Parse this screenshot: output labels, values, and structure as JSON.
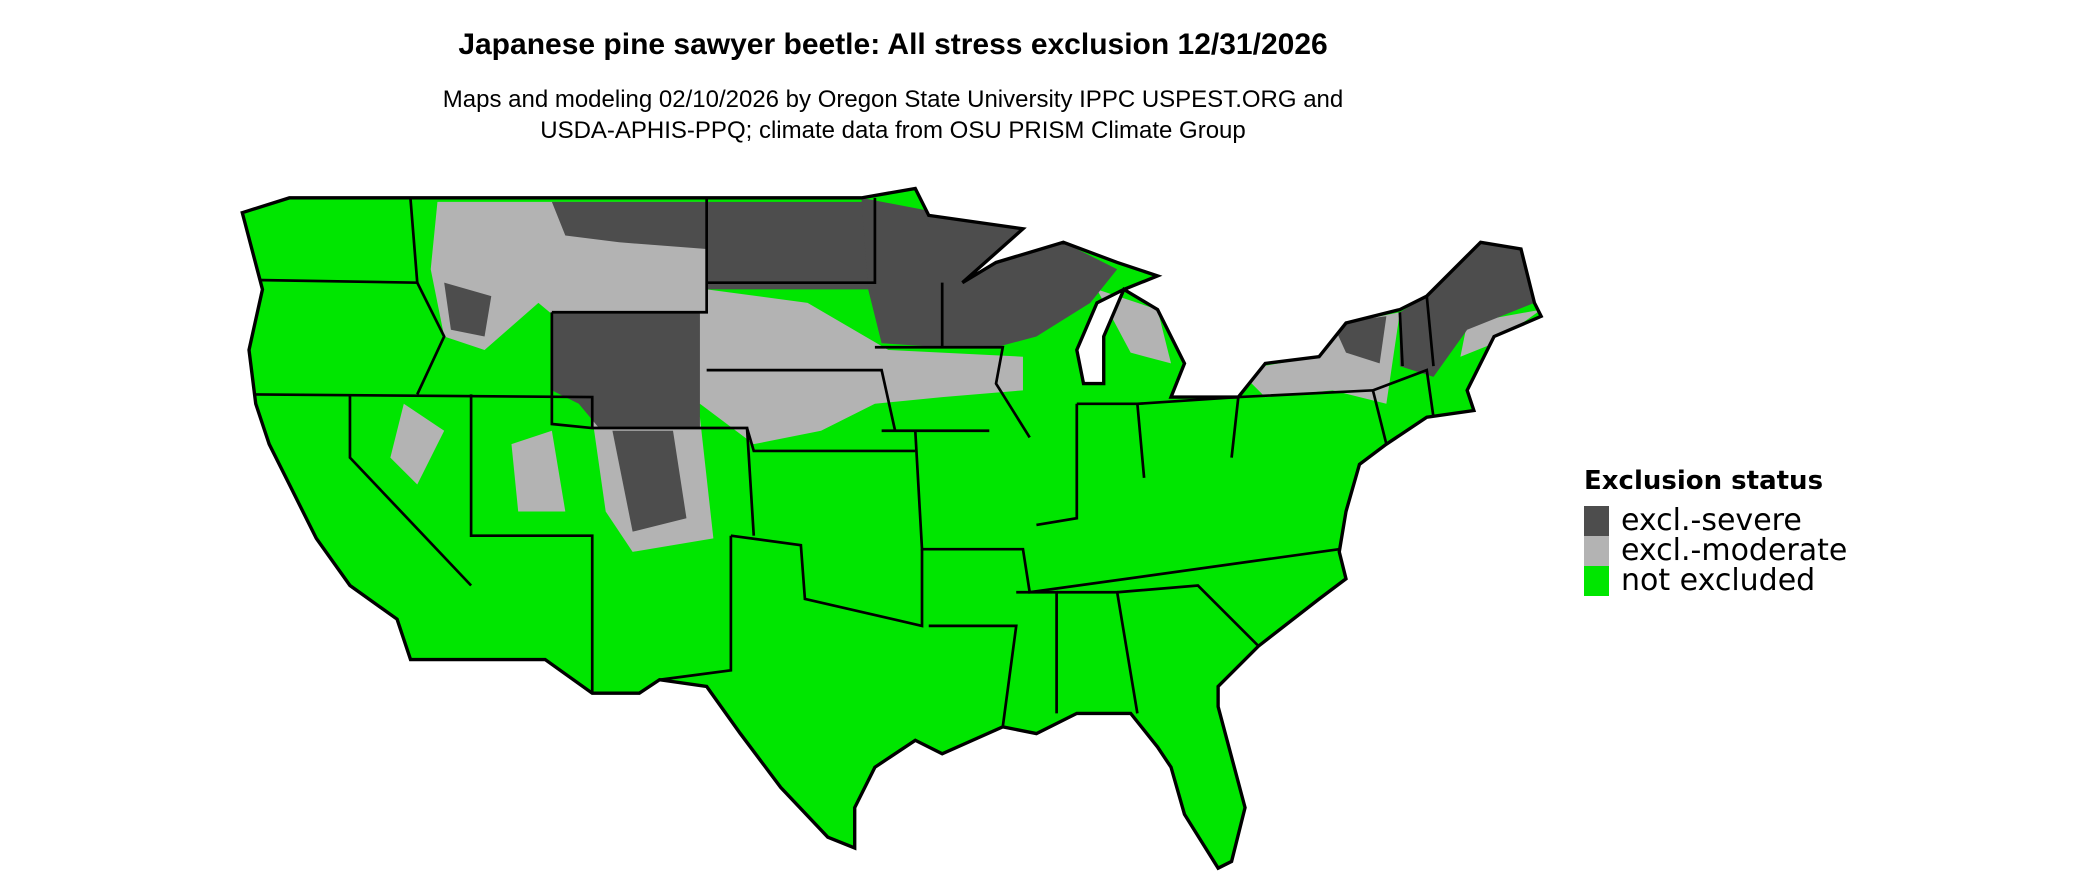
{
  "title": "Japanese pine sawyer beetle: All stress exclusion 12/31/2026",
  "subtitle_line1": "Maps and modeling 02/10/2026 by Oregon State University IPPC USPEST.ORG and",
  "subtitle_line2": "USDA-APHIS-PPQ; climate data from OSU PRISM Climate Group",
  "map": {
    "region": "contiguous United States",
    "colors": {
      "severe": "#4d4d4d",
      "moderate": "#b3b3b3",
      "not_excluded": "#00e600",
      "border": "#000000"
    }
  },
  "legend": {
    "title": "Exclusion status",
    "items": [
      {
        "label": "excl.-severe",
        "color": "#4d4d4d"
      },
      {
        "label": "excl.-moderate",
        "color": "#b3b3b3"
      },
      {
        "label": "not excluded",
        "color": "#00e600"
      }
    ]
  }
}
